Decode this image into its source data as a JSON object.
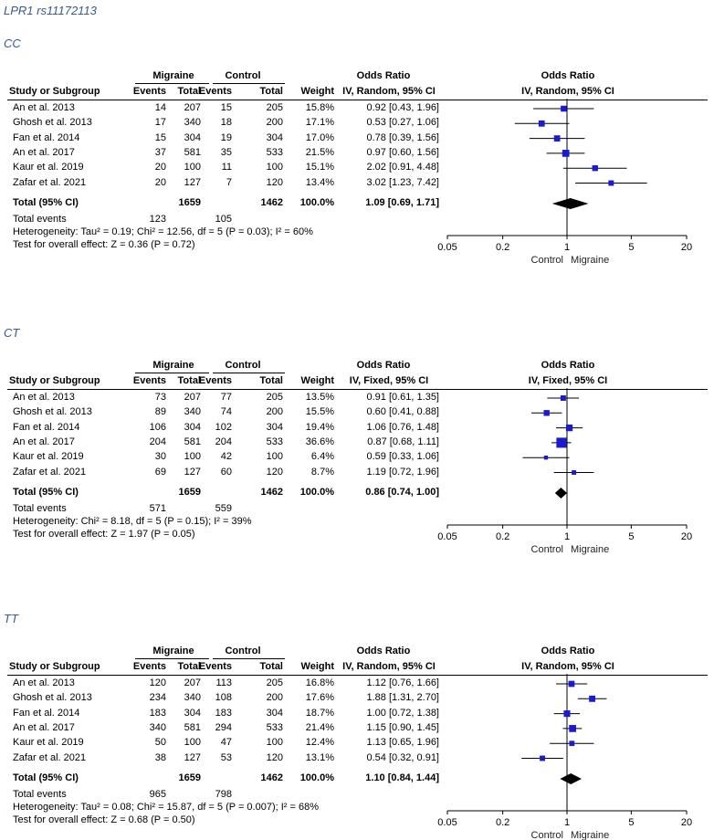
{
  "page_title": "LPR1 rs11172113",
  "headers": {
    "migraine": "Migraine",
    "control": "Control",
    "odds_ratio": "Odds Ratio",
    "study": "Study or Subgroup",
    "events": "Events",
    "total": "Total",
    "weight": "Weight",
    "total_row_label": "Total (95% CI)",
    "total_events_label": "Total events"
  },
  "chart_data": [
    {
      "type": "forest",
      "panel_title": "CC",
      "method": "IV, Random, 95% CI",
      "studies": [
        {
          "name": "An et al. 2013",
          "mig_events": "14",
          "mig_total": "207",
          "ctl_events": "15",
          "ctl_total": "205",
          "weight": "15.8%",
          "ci_text": "0.92 [0.43, 1.96]",
          "or": 0.92,
          "lo": 0.43,
          "hi": 1.96,
          "w": 15.8
        },
        {
          "name": "Ghosh et al. 2013",
          "mig_events": "17",
          "mig_total": "340",
          "ctl_events": "18",
          "ctl_total": "200",
          "weight": "17.1%",
          "ci_text": "0.53 [0.27, 1.06]",
          "or": 0.53,
          "lo": 0.27,
          "hi": 1.06,
          "w": 17.1
        },
        {
          "name": "Fan et al. 2014",
          "mig_events": "15",
          "mig_total": "304",
          "ctl_events": "19",
          "ctl_total": "304",
          "weight": "17.0%",
          "ci_text": "0.78 [0.39, 1.56]",
          "or": 0.78,
          "lo": 0.39,
          "hi": 1.56,
          "w": 17.0
        },
        {
          "name": "An et al. 2017",
          "mig_events": "37",
          "mig_total": "581",
          "ctl_events": "35",
          "ctl_total": "533",
          "weight": "21.5%",
          "ci_text": "0.97 [0.60, 1.56]",
          "or": 0.97,
          "lo": 0.6,
          "hi": 1.56,
          "w": 21.5
        },
        {
          "name": "Kaur et al. 2019",
          "mig_events": "20",
          "mig_total": "100",
          "ctl_events": "11",
          "ctl_total": "100",
          "weight": "15.1%",
          "ci_text": "2.02 [0.91, 4.48]",
          "or": 2.02,
          "lo": 0.91,
          "hi": 4.48,
          "w": 15.1
        },
        {
          "name": "Zafar et al. 2021",
          "mig_events": "20",
          "mig_total": "127",
          "ctl_events": "7",
          "ctl_total": "120",
          "weight": "13.4%",
          "ci_text": "3.02 [1.23, 7.42]",
          "or": 3.02,
          "lo": 1.23,
          "hi": 7.42,
          "w": 13.4
        }
      ],
      "total": {
        "mig_total": "1659",
        "ctl_total": "1462",
        "weight": "100.0%",
        "ci_text": "1.09 [0.69, 1.71]",
        "or": 1.09,
        "lo": 0.69,
        "hi": 1.71
      },
      "total_events": {
        "mig": "123",
        "ctl": "105"
      },
      "heterogeneity": "Heterogeneity: Tau² = 0.19; Chi² = 12.56, df = 5 (P = 0.03); I² = 60%",
      "overall_effect": "Test for overall effect: Z = 0.36 (P = 0.72)",
      "x_ticks": [
        {
          "v": 0.05,
          "label": "0.05"
        },
        {
          "v": 0.2,
          "label": "0.2"
        },
        {
          "v": 1,
          "label": "1"
        },
        {
          "v": 5,
          "label": "5"
        },
        {
          "v": 20,
          "label": "20"
        }
      ],
      "x_range": [
        0.05,
        20
      ],
      "favours_left": "Control",
      "favours_right": "Migraine"
    },
    {
      "type": "forest",
      "panel_title": "CT",
      "method": "IV, Fixed, 95% CI",
      "studies": [
        {
          "name": "An et al. 2013",
          "mig_events": "73",
          "mig_total": "207",
          "ctl_events": "77",
          "ctl_total": "205",
          "weight": "13.5%",
          "ci_text": "0.91 [0.61, 1.35]",
          "or": 0.91,
          "lo": 0.61,
          "hi": 1.35,
          "w": 13.5
        },
        {
          "name": "Ghosh et al. 2013",
          "mig_events": "89",
          "mig_total": "340",
          "ctl_events": "74",
          "ctl_total": "200",
          "weight": "15.5%",
          "ci_text": "0.60 [0.41, 0.88]",
          "or": 0.6,
          "lo": 0.41,
          "hi": 0.88,
          "w": 15.5
        },
        {
          "name": "Fan et al. 2014",
          "mig_events": "106",
          "mig_total": "304",
          "ctl_events": "102",
          "ctl_total": "304",
          "weight": "19.4%",
          "ci_text": "1.06 [0.76, 1.48]",
          "or": 1.06,
          "lo": 0.76,
          "hi": 1.48,
          "w": 19.4
        },
        {
          "name": "An et al. 2017",
          "mig_events": "204",
          "mig_total": "581",
          "ctl_events": "204",
          "ctl_total": "533",
          "weight": "36.6%",
          "ci_text": "0.87 [0.68, 1.11]",
          "or": 0.87,
          "lo": 0.68,
          "hi": 1.11,
          "w": 36.6
        },
        {
          "name": "Kaur et al. 2019",
          "mig_events": "30",
          "mig_total": "100",
          "ctl_events": "42",
          "ctl_total": "100",
          "weight": "6.4%",
          "ci_text": "0.59 [0.33, 1.06]",
          "or": 0.59,
          "lo": 0.33,
          "hi": 1.06,
          "w": 6.4
        },
        {
          "name": "Zafar et al. 2021",
          "mig_events": "69",
          "mig_total": "127",
          "ctl_events": "60",
          "ctl_total": "120",
          "weight": "8.7%",
          "ci_text": "1.19 [0.72, 1.96]",
          "or": 1.19,
          "lo": 0.72,
          "hi": 1.96,
          "w": 8.7
        }
      ],
      "total": {
        "mig_total": "1659",
        "ctl_total": "1462",
        "weight": "100.0%",
        "ci_text": "0.86 [0.74, 1.00]",
        "or": 0.86,
        "lo": 0.74,
        "hi": 1.0
      },
      "total_events": {
        "mig": "571",
        "ctl": "559"
      },
      "heterogeneity": "Heterogeneity: Chi² = 8.18, df = 5 (P = 0.15); I² = 39%",
      "overall_effect": "Test for overall effect: Z = 1.97 (P = 0.05)",
      "x_ticks": [
        {
          "v": 0.05,
          "label": "0.05"
        },
        {
          "v": 0.2,
          "label": "0.2"
        },
        {
          "v": 1,
          "label": "1"
        },
        {
          "v": 5,
          "label": "5"
        },
        {
          "v": 20,
          "label": "20"
        }
      ],
      "x_range": [
        0.05,
        20
      ],
      "favours_left": "Control",
      "favours_right": "Migraine"
    },
    {
      "type": "forest",
      "panel_title": "TT",
      "method": "IV, Random, 95% CI",
      "studies": [
        {
          "name": "An et al. 2013",
          "mig_events": "120",
          "mig_total": "207",
          "ctl_events": "113",
          "ctl_total": "205",
          "weight": "16.8%",
          "ci_text": "1.12 [0.76, 1.66]",
          "or": 1.12,
          "lo": 0.76,
          "hi": 1.66,
          "w": 16.8
        },
        {
          "name": "Ghosh et al. 2013",
          "mig_events": "234",
          "mig_total": "340",
          "ctl_events": "108",
          "ctl_total": "200",
          "weight": "17.6%",
          "ci_text": "1.88 [1.31, 2.70]",
          "or": 1.88,
          "lo": 1.31,
          "hi": 2.7,
          "w": 17.6
        },
        {
          "name": "Fan et al. 2014",
          "mig_events": "183",
          "mig_total": "304",
          "ctl_events": "183",
          "ctl_total": "304",
          "weight": "18.7%",
          "ci_text": "1.00 [0.72, 1.38]",
          "or": 1.0,
          "lo": 0.72,
          "hi": 1.38,
          "w": 18.7
        },
        {
          "name": "An et al. 2017",
          "mig_events": "340",
          "mig_total": "581",
          "ctl_events": "294",
          "ctl_total": "533",
          "weight": "21.4%",
          "ci_text": "1.15 [0.90, 1.45]",
          "or": 1.15,
          "lo": 0.9,
          "hi": 1.45,
          "w": 21.4
        },
        {
          "name": "Kaur et al. 2019",
          "mig_events": "50",
          "mig_total": "100",
          "ctl_events": "47",
          "ctl_total": "100",
          "weight": "12.4%",
          "ci_text": "1.13 [0.65, 1.96]",
          "or": 1.13,
          "lo": 0.65,
          "hi": 1.96,
          "w": 12.4
        },
        {
          "name": "Zafar et al. 2021",
          "mig_events": "38",
          "mig_total": "127",
          "ctl_events": "53",
          "ctl_total": "120",
          "weight": "13.1%",
          "ci_text": "0.54 [0.32, 0.91]",
          "or": 0.54,
          "lo": 0.32,
          "hi": 0.91,
          "w": 13.1
        }
      ],
      "total": {
        "mig_total": "1659",
        "ctl_total": "1462",
        "weight": "100.0%",
        "ci_text": "1.10 [0.84, 1.44]",
        "or": 1.1,
        "lo": 0.84,
        "hi": 1.44
      },
      "total_events": {
        "mig": "965",
        "ctl": "798"
      },
      "heterogeneity": "Heterogeneity: Tau² = 0.08; Chi² = 15.87, df = 5 (P = 0.007); I² = 68%",
      "overall_effect": "Test for overall effect: Z = 0.68 (P = 0.50)",
      "x_ticks": [
        {
          "v": 0.05,
          "label": "0.05"
        },
        {
          "v": 0.2,
          "label": "0.2"
        },
        {
          "v": 1,
          "label": "1"
        },
        {
          "v": 5,
          "label": "5"
        },
        {
          "v": 20,
          "label": "20"
        }
      ],
      "x_range": [
        0.05,
        20
      ],
      "favours_left": "Control",
      "favours_right": "Migraine"
    }
  ]
}
